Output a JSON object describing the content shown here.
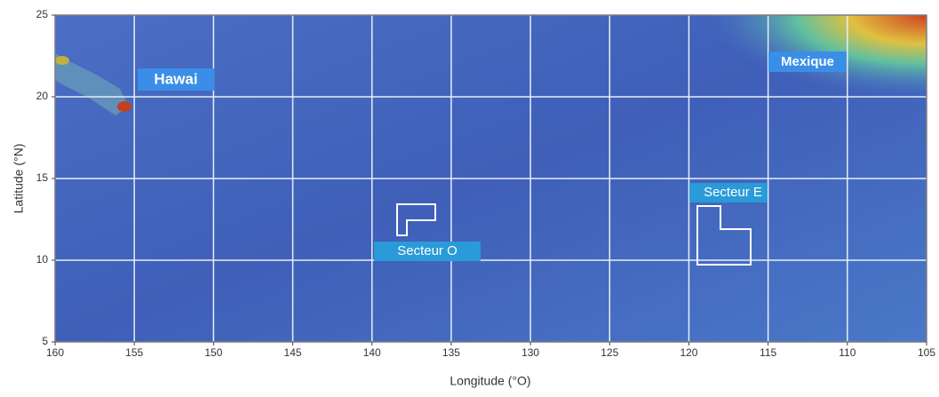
{
  "map": {
    "xlabel": "Longitude (°O)",
    "ylabel": "Latitude (°N)",
    "xlim": [
      160,
      105
    ],
    "ylim": [
      5,
      25
    ],
    "xticks": [
      160,
      155,
      150,
      145,
      140,
      135,
      130,
      125,
      120,
      115,
      110,
      105
    ],
    "yticks": [
      5,
      10,
      15,
      20,
      25
    ],
    "grid": true,
    "labels": [
      "Hawai",
      "Mexique",
      "Secteur O",
      "Secteur E"
    ]
  }
}
